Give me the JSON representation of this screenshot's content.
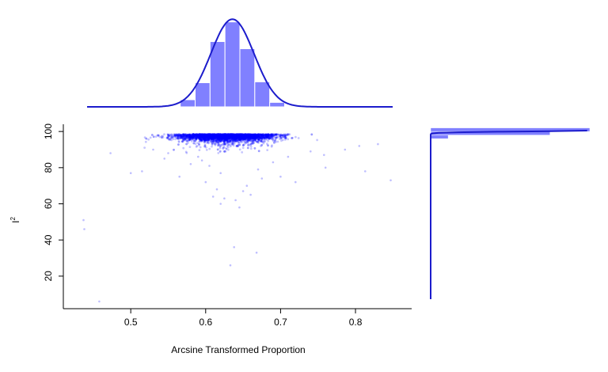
{
  "colors": {
    "blue": "#0000ff",
    "hist_fill": "#8080ff",
    "curve": "#1c1ccc",
    "axis": "#000000",
    "point_alpha": 0.08
  },
  "chart_data": [
    {
      "type": "scatter",
      "name": "main",
      "xlabel": "Arcsine Transformed Proportion",
      "ylabel": "I²",
      "xlim": [
        0.41,
        0.875
      ],
      "ylim": [
        2,
        104
      ],
      "x_ticks": [
        0.5,
        0.6,
        0.7,
        0.8
      ],
      "x_tick_labels": [
        "0.5",
        "0.6",
        "0.7",
        "0.8"
      ],
      "y_ticks": [
        20,
        40,
        60,
        80,
        100
      ],
      "y_tick_labels": [
        "20",
        "40",
        "60",
        "80",
        "100"
      ],
      "grid": false,
      "dense_cluster": {
        "x_range": [
          0.5,
          0.76
        ],
        "y_range": [
          92,
          100
        ],
        "x_center": 0.627,
        "y_center": 96.5
      },
      "sparse_points": [
        {
          "x": 0.437,
          "y": 51
        },
        {
          "x": 0.438,
          "y": 46
        },
        {
          "x": 0.458,
          "y": 6
        },
        {
          "x": 0.473,
          "y": 88
        },
        {
          "x": 0.5,
          "y": 77
        },
        {
          "x": 0.515,
          "y": 78
        },
        {
          "x": 0.545,
          "y": 85
        },
        {
          "x": 0.58,
          "y": 82
        },
        {
          "x": 0.6,
          "y": 72
        },
        {
          "x": 0.615,
          "y": 68
        },
        {
          "x": 0.62,
          "y": 60
        },
        {
          "x": 0.625,
          "y": 63
        },
        {
          "x": 0.633,
          "y": 26
        },
        {
          "x": 0.638,
          "y": 36
        },
        {
          "x": 0.645,
          "y": 58
        },
        {
          "x": 0.655,
          "y": 70
        },
        {
          "x": 0.66,
          "y": 65
        },
        {
          "x": 0.668,
          "y": 33
        },
        {
          "x": 0.675,
          "y": 74
        },
        {
          "x": 0.7,
          "y": 75
        },
        {
          "x": 0.72,
          "y": 72
        },
        {
          "x": 0.758,
          "y": 87
        },
        {
          "x": 0.76,
          "y": 80
        },
        {
          "x": 0.786,
          "y": 90
        },
        {
          "x": 0.805,
          "y": 92
        },
        {
          "x": 0.813,
          "y": 78
        },
        {
          "x": 0.83,
          "y": 93
        },
        {
          "x": 0.847,
          "y": 73
        },
        {
          "x": 0.565,
          "y": 75
        },
        {
          "x": 0.59,
          "y": 86
        },
        {
          "x": 0.61,
          "y": 64
        },
        {
          "x": 0.64,
          "y": 62
        },
        {
          "x": 0.65,
          "y": 67
        },
        {
          "x": 0.67,
          "y": 79
        },
        {
          "x": 0.69,
          "y": 83
        },
        {
          "x": 0.71,
          "y": 86
        },
        {
          "x": 0.55,
          "y": 88
        },
        {
          "x": 0.53,
          "y": 90
        },
        {
          "x": 0.74,
          "y": 89
        },
        {
          "x": 0.62,
          "y": 77
        },
        {
          "x": 0.605,
          "y": 81
        },
        {
          "x": 0.595,
          "y": 84
        }
      ]
    },
    {
      "type": "bar",
      "name": "top-histogram",
      "bins": [
        {
          "x0": 0.56,
          "x1": 0.58,
          "value": 0.08
        },
        {
          "x0": 0.58,
          "x1": 0.6,
          "value": 0.27
        },
        {
          "x0": 0.6,
          "x1": 0.62,
          "value": 0.73
        },
        {
          "x0": 0.62,
          "x1": 0.64,
          "value": 0.95
        },
        {
          "x0": 0.64,
          "x1": 0.66,
          "value": 0.65
        },
        {
          "x0": 0.66,
          "x1": 0.68,
          "value": 0.28
        },
        {
          "x0": 0.68,
          "x1": 0.7,
          "value": 0.05
        }
      ],
      "density_curve": {
        "mean": 0.63,
        "sd": 0.029,
        "peak": 0.98
      },
      "xlim": [
        0.435,
        0.845
      ]
    },
    {
      "type": "bar",
      "name": "right-histogram",
      "bins": [
        {
          "y0": 94,
          "y1": 96,
          "value": 0.11
        },
        {
          "y0": 96,
          "y1": 98,
          "value": 0.75
        },
        {
          "y0": 98,
          "y1": 100,
          "value": 1.0
        }
      ],
      "density_curve": {
        "mode": 98.6,
        "sd": 0.55
      },
      "ylim": [
        5,
        98.5
      ]
    }
  ]
}
